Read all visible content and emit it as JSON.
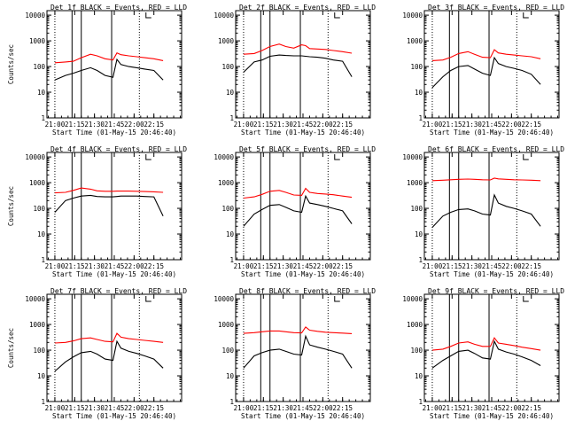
{
  "chart_data": [
    {
      "type": "line",
      "title": "Det 1f BLACK = Events, RED = LLD",
      "ylabel": "Counts/sec",
      "xlabel": "Start Time (01-May-15 20:46:40)",
      "x_ticks": [
        "21:00",
        "21:15",
        "21:30",
        "21:45",
        "22:00",
        "22:15"
      ],
      "y_ticks": [
        "1",
        "10",
        "100",
        "1000",
        "10000"
      ],
      "yscale": "log",
      "ylim": [
        1,
        15000
      ],
      "series": [
        {
          "color": "#ff0000",
          "x_minutes": [
            0,
            8,
            14,
            20,
            27,
            32,
            38,
            44,
            47,
            50,
            56,
            62,
            68,
            75,
            82
          ],
          "values": [
            140,
            150,
            160,
            220,
            300,
            260,
            200,
            180,
            340,
            290,
            260,
            240,
            220,
            200,
            170
          ]
        },
        {
          "color": "#000000",
          "x_minutes": [
            0,
            8,
            14,
            20,
            27,
            32,
            38,
            44,
            47,
            50,
            56,
            62,
            68,
            75,
            82
          ],
          "values": [
            30,
            45,
            55,
            70,
            90,
            70,
            45,
            38,
            190,
            120,
            100,
            90,
            80,
            70,
            30
          ]
        }
      ]
    },
    {
      "type": "line",
      "title": "Det 2f BLACK = Events, RED = LLD",
      "ylabel": "",
      "xlabel": "Start Time (01-May-15 20:46:40)",
      "x_ticks": [
        "21:00",
        "21:15",
        "21:30",
        "21:45",
        "22:00",
        "22:15"
      ],
      "y_ticks": [
        "1",
        "10",
        "100",
        "1000",
        "10000"
      ],
      "yscale": "log",
      "ylim": [
        1,
        15000
      ],
      "series": [
        {
          "color": "#ff0000",
          "x_minutes": [
            0,
            8,
            14,
            20,
            27,
            32,
            38,
            44,
            47,
            50,
            56,
            62,
            68,
            75,
            82
          ],
          "values": [
            300,
            320,
            420,
            600,
            750,
            600,
            520,
            700,
            650,
            500,
            480,
            460,
            420,
            380,
            330
          ]
        },
        {
          "color": "#000000",
          "x_minutes": [
            0,
            8,
            14,
            20,
            27,
            32,
            38,
            44,
            47,
            50,
            56,
            62,
            68,
            75,
            82
          ],
          "values": [
            60,
            150,
            180,
            250,
            280,
            270,
            260,
            260,
            250,
            240,
            230,
            210,
            180,
            160,
            40
          ]
        }
      ]
    },
    {
      "type": "line",
      "title": "Det 3f BLACK = Events, RED = LLD",
      "ylabel": "",
      "xlabel": "Start Time (01-May-15 20:46:40)",
      "x_ticks": [
        "21:00",
        "21:15",
        "21:30",
        "21:45",
        "22:00",
        "22:15"
      ],
      "y_ticks": [
        "1",
        "10",
        "100",
        "1000",
        "10000"
      ],
      "yscale": "log",
      "ylim": [
        1,
        15000
      ],
      "series": [
        {
          "color": "#ff0000",
          "x_minutes": [
            0,
            8,
            14,
            20,
            27,
            32,
            38,
            44,
            47,
            50,
            56,
            62,
            68,
            75,
            82
          ],
          "values": [
            170,
            180,
            230,
            320,
            380,
            300,
            230,
            220,
            450,
            340,
            300,
            280,
            260,
            240,
            200
          ]
        },
        {
          "color": "#000000",
          "x_minutes": [
            0,
            8,
            14,
            20,
            27,
            32,
            38,
            44,
            47,
            50,
            56,
            62,
            68,
            75,
            82
          ],
          "values": [
            15,
            40,
            70,
            100,
            110,
            80,
            55,
            45,
            220,
            130,
            100,
            85,
            70,
            50,
            20
          ]
        }
      ]
    },
    {
      "type": "line",
      "title": "Det 4f BLACK = Events, RED = LLD",
      "ylabel": "Counts/sec",
      "xlabel": "Start Time (01-May-15 20:46:40)",
      "x_ticks": [
        "21:00",
        "21:15",
        "21:30",
        "21:45",
        "22:00",
        "22:15"
      ],
      "y_ticks": [
        "1",
        "10",
        "100",
        "1000",
        "10000"
      ],
      "yscale": "log",
      "ylim": [
        1,
        15000
      ],
      "series": [
        {
          "color": "#ff0000",
          "x_minutes": [
            0,
            8,
            14,
            20,
            27,
            32,
            38,
            44,
            47,
            50,
            56,
            62,
            68,
            75,
            82
          ],
          "values": [
            400,
            420,
            500,
            620,
            560,
            480,
            460,
            460,
            470,
            470,
            470,
            460,
            450,
            440,
            420
          ]
        },
        {
          "color": "#000000",
          "x_minutes": [
            0,
            8,
            14,
            20,
            27,
            32,
            38,
            44,
            47,
            50,
            56,
            62,
            68,
            75,
            82
          ],
          "values": [
            70,
            200,
            250,
            300,
            320,
            290,
            280,
            280,
            290,
            300,
            300,
            300,
            290,
            280,
            50
          ]
        }
      ]
    },
    {
      "type": "line",
      "title": "Det 5f BLACK = Events, RED = LLD",
      "ylabel": "",
      "xlabel": "Start Time (01-May-15 20:46:40)",
      "x_ticks": [
        "21:00",
        "21:15",
        "21:30",
        "21:45",
        "22:00",
        "22:15"
      ],
      "y_ticks": [
        "1",
        "10",
        "100",
        "1000",
        "10000"
      ],
      "yscale": "log",
      "ylim": [
        1,
        15000
      ],
      "series": [
        {
          "color": "#ff0000",
          "x_minutes": [
            0,
            8,
            14,
            20,
            27,
            32,
            38,
            44,
            47,
            50,
            56,
            62,
            68,
            75,
            82
          ],
          "values": [
            250,
            280,
            350,
            460,
            500,
            420,
            330,
            320,
            600,
            420,
            380,
            360,
            340,
            300,
            270
          ]
        },
        {
          "color": "#000000",
          "x_minutes": [
            0,
            8,
            14,
            20,
            27,
            32,
            38,
            44,
            47,
            50,
            56,
            62,
            68,
            75,
            82
          ],
          "values": [
            20,
            60,
            90,
            130,
            140,
            110,
            80,
            70,
            300,
            160,
            140,
            120,
            100,
            80,
            25
          ]
        }
      ]
    },
    {
      "type": "line",
      "title": "Det 6f BLACK = Events, RED = LLD",
      "ylabel": "",
      "xlabel": "Start Time (01-May-15 20:46:40)",
      "x_ticks": [
        "21:00",
        "21:15",
        "21:30",
        "21:45",
        "22:00",
        "22:15"
      ],
      "y_ticks": [
        "1",
        "10",
        "100",
        "1000",
        "10000"
      ],
      "yscale": "log",
      "ylim": [
        1,
        15000
      ],
      "series": [
        {
          "color": "#ff0000",
          "x_minutes": [
            0,
            8,
            14,
            20,
            27,
            32,
            38,
            44,
            47,
            50,
            56,
            62,
            68,
            75,
            82
          ],
          "values": [
            1200,
            1250,
            1300,
            1350,
            1380,
            1350,
            1300,
            1280,
            1500,
            1400,
            1350,
            1300,
            1280,
            1250,
            1200
          ]
        },
        {
          "color": "#000000",
          "x_minutes": [
            0,
            8,
            14,
            20,
            27,
            32,
            38,
            44,
            47,
            50,
            56,
            62,
            68,
            75,
            82
          ],
          "values": [
            18,
            50,
            70,
            90,
            95,
            80,
            60,
            55,
            330,
            160,
            120,
            100,
            80,
            60,
            20
          ]
        }
      ]
    },
    {
      "type": "line",
      "title": "Det 7f BLACK = Events, RED = LLD",
      "ylabel": "Counts/sec",
      "xlabel": "Start Time (01-May-15 20:46:40)",
      "x_ticks": [
        "21:00",
        "21:15",
        "21:30",
        "21:45",
        "22:00",
        "22:15"
      ],
      "y_ticks": [
        "1",
        "10",
        "100",
        "1000",
        "10000"
      ],
      "yscale": "log",
      "ylim": [
        1,
        15000
      ],
      "series": [
        {
          "color": "#ff0000",
          "x_minutes": [
            0,
            8,
            14,
            20,
            27,
            32,
            38,
            44,
            47,
            50,
            56,
            62,
            68,
            75,
            82
          ],
          "values": [
            190,
            200,
            230,
            280,
            300,
            260,
            220,
            210,
            450,
            320,
            280,
            260,
            240,
            220,
            200
          ]
        },
        {
          "color": "#000000",
          "x_minutes": [
            0,
            8,
            14,
            20,
            27,
            32,
            38,
            44,
            47,
            50,
            56,
            62,
            68,
            75,
            82
          ],
          "values": [
            15,
            35,
            55,
            80,
            90,
            70,
            45,
            40,
            220,
            120,
            90,
            75,
            60,
            45,
            20
          ]
        }
      ]
    },
    {
      "type": "line",
      "title": "Det 8f BLACK = Events, RED = LLD",
      "ylabel": "",
      "xlabel": "Start Time (01-May-15 20:46:40)",
      "x_ticks": [
        "21:00",
        "21:15",
        "21:30",
        "21:45",
        "22:00",
        "22:15"
      ],
      "y_ticks": [
        "1",
        "10",
        "100",
        "1000",
        "10000"
      ],
      "yscale": "log",
      "ylim": [
        1,
        15000
      ],
      "series": [
        {
          "color": "#ff0000",
          "x_minutes": [
            0,
            8,
            14,
            20,
            27,
            32,
            38,
            44,
            47,
            50,
            56,
            62,
            68,
            75,
            82
          ],
          "values": [
            450,
            480,
            520,
            560,
            560,
            520,
            480,
            470,
            800,
            600,
            540,
            500,
            480,
            460,
            440
          ]
        },
        {
          "color": "#000000",
          "x_minutes": [
            0,
            8,
            14,
            20,
            27,
            32,
            38,
            44,
            47,
            50,
            56,
            62,
            68,
            75,
            82
          ],
          "values": [
            20,
            60,
            80,
            100,
            110,
            90,
            70,
            65,
            350,
            160,
            130,
            110,
            90,
            70,
            20
          ]
        }
      ]
    },
    {
      "type": "line",
      "title": "Det 9f BLACK = Events, RED = LLD",
      "ylabel": "",
      "xlabel": "Start Time (01-May-15 20:46:40)",
      "x_ticks": [
        "21:00",
        "21:15",
        "21:30",
        "21:45",
        "22:00",
        "22:15"
      ],
      "y_ticks": [
        "1",
        "10",
        "100",
        "1000",
        "10000"
      ],
      "yscale": "log",
      "ylim": [
        1,
        15000
      ],
      "series": [
        {
          "color": "#ff0000",
          "x_minutes": [
            0,
            8,
            14,
            20,
            27,
            32,
            38,
            44,
            47,
            50,
            56,
            62,
            68,
            75,
            82
          ],
          "values": [
            100,
            110,
            140,
            190,
            210,
            170,
            140,
            140,
            300,
            190,
            170,
            150,
            130,
            115,
            100
          ]
        },
        {
          "color": "#000000",
          "x_minutes": [
            0,
            8,
            14,
            20,
            27,
            32,
            38,
            44,
            47,
            50,
            56,
            62,
            68,
            75,
            82
          ],
          "values": [
            20,
            40,
            60,
            90,
            100,
            75,
            50,
            45,
            220,
            110,
            85,
            70,
            55,
            40,
            25
          ]
        }
      ]
    }
  ]
}
